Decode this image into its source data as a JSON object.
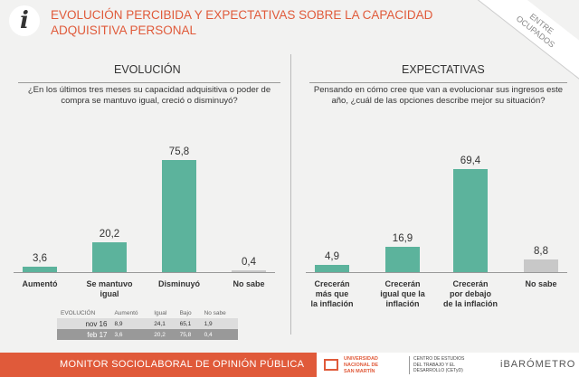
{
  "header": {
    "logo_letter": "i",
    "title": "EVOLUCIÓN PERCIBIDA Y EXPECTATIVAS SOBRE LA CAPACIDAD ADQUISITIVA PERSONAL",
    "ribbon": [
      "ENTRE",
      "OCUPADOS"
    ]
  },
  "left": {
    "title": "EVOLUCIÓN",
    "question": "¿En los últimos tres meses su capacidad adquisitiva o poder de compra se mantuvo igual, creció o disminuyó?"
  },
  "right": {
    "title": "EXPECTATIVAS",
    "question": "Pensando en cómo cree que van a evolucionar sus ingresos este año, ¿cuál de las opciones describe mejor su situación?"
  },
  "chart_data": [
    {
      "type": "bar",
      "categories": [
        "Aumentó",
        "Se mantuvo igual",
        "Disminuyó",
        "No sabe"
      ],
      "category_lines": [
        [
          "Aumentó"
        ],
        [
          "Se mantuvo",
          "igual"
        ],
        [
          "Disminuyó"
        ],
        [
          "No sabe"
        ]
      ],
      "values": [
        3.6,
        20.2,
        75.8,
        0.4
      ],
      "labels": [
        "3,6",
        "20,2",
        "75,8",
        "0,4"
      ],
      "colors": [
        "#5cb39c",
        "#5cb39c",
        "#5cb39c",
        "#c8c8c8"
      ]
    },
    {
      "type": "bar",
      "categories": [
        "Crecerán más que la inflación",
        "Crecerán igual que la inflación",
        "Crecerán por debajo de la inflación",
        "No sabe"
      ],
      "category_lines": [
        [
          "Crecerán",
          "más que",
          "la inflación"
        ],
        [
          "Crecerán",
          "igual que la",
          "inflación"
        ],
        [
          "Crecerán",
          "por debajo",
          "de la inflación"
        ],
        [
          "No sabe"
        ]
      ],
      "values": [
        4.9,
        16.9,
        69.4,
        8.8
      ],
      "labels": [
        "4,9",
        "16,9",
        "69,4",
        "8,8"
      ],
      "colors": [
        "#5cb39c",
        "#5cb39c",
        "#5cb39c",
        "#c8c8c8"
      ]
    },
    {
      "type": "table",
      "columns": [
        "EVOLUCIÓN",
        "Aumentó",
        "Igual",
        "Bajo",
        "No sabe"
      ],
      "rows": [
        [
          "nov 16",
          "8,9",
          "24,1",
          "65,1",
          "1,9"
        ],
        [
          "feb 17",
          "3,6",
          "20,2",
          "75,8",
          "0,4"
        ]
      ]
    }
  ],
  "footer": {
    "monitor": "MONITOR SOCIOLABORAL DE OPINIÓN PÚBLICA",
    "unsam": [
      "UNIVERSIDAD",
      "NACIONAL DE",
      "SAN MARTÍN"
    ],
    "cetyd": [
      "CENTRO DE ESTUDIOS",
      "DEL TRABAJO Y EL",
      "DESARROLLO (CETyD)"
    ],
    "barometro": "iBARÓMETRO"
  }
}
